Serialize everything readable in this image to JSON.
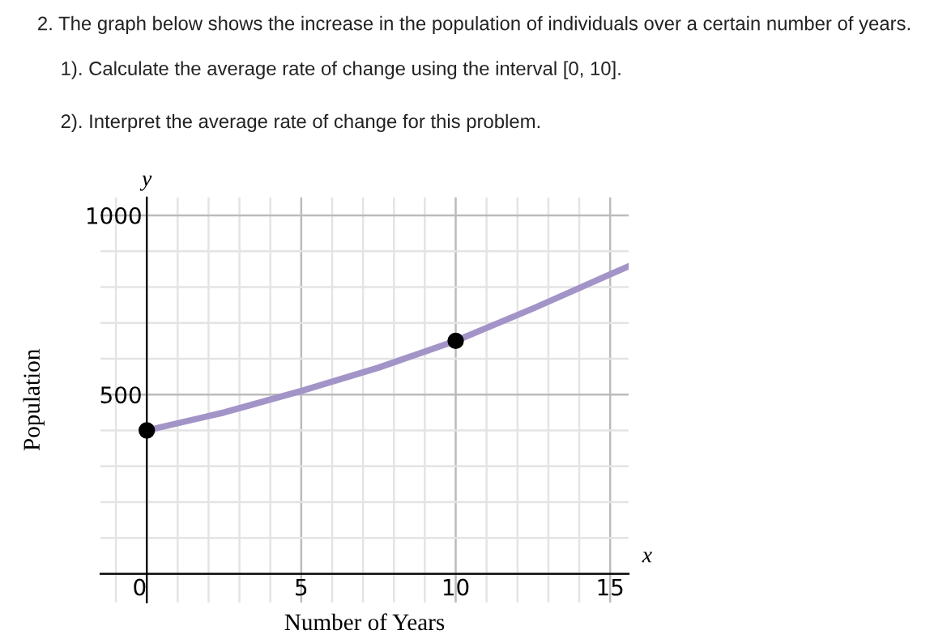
{
  "chart_data": {
    "type": "line",
    "title": "2. The graph below shows the increase in the population of individuals over a certain number of years.",
    "subtitle": "1). Calculate the average rate of change using the interval [0, 10].\n\n2). Interpret the average rate of change for this problem.",
    "xlabel": "Number of Years",
    "ylabel": "Population",
    "annotations": [
      "y",
      "x"
    ],
    "series": [
      {
        "color": "#a394c8",
        "x": [
          0,
          2.5,
          5,
          7.5,
          10,
          12.5,
          15.6
        ],
        "values": [
          400,
          450,
          510,
          575,
          650,
          740,
          858
        ],
        "marker": "none"
      },
      {
        "type": "scatter",
        "color": "#000000",
        "x": [
          0,
          10
        ],
        "values": [
          400,
          650
        ],
        "marker": "circle"
      }
    ],
    "xlim": [
      -1.5,
      15.6
    ],
    "ylim": [
      -80,
      1050
    ],
    "xticks": [
      0,
      {
        "value": 1,
        "label": null
      },
      {
        "value": 2,
        "label": null
      },
      {
        "value": 3,
        "label": null
      },
      {
        "value": 4,
        "label": null
      },
      5,
      {
        "value": 6,
        "label": null
      },
      {
        "value": 7,
        "label": null
      },
      {
        "value": 8,
        "label": null
      },
      {
        "value": 9,
        "label": null
      },
      10,
      {
        "value": 11,
        "label": null
      },
      {
        "value": 12,
        "label": null
      },
      {
        "value": 13,
        "label": null
      },
      {
        "value": 14,
        "label": null
      },
      15,
      {
        "value": -1,
        "label": null
      }
    ],
    "yticks": [
      {
        "value": 100,
        "label": null
      },
      {
        "value": 200,
        "label": null
      },
      {
        "value": 300,
        "label": null
      },
      {
        "value": 400,
        "label": null
      },
      500,
      {
        "value": 600,
        "label": null
      },
      {
        "value": 700,
        "label": null
      },
      {
        "value": 800,
        "label": null
      },
      {
        "value": 900,
        "label": null
      },
      1000
    ],
    "grid": true
  }
}
